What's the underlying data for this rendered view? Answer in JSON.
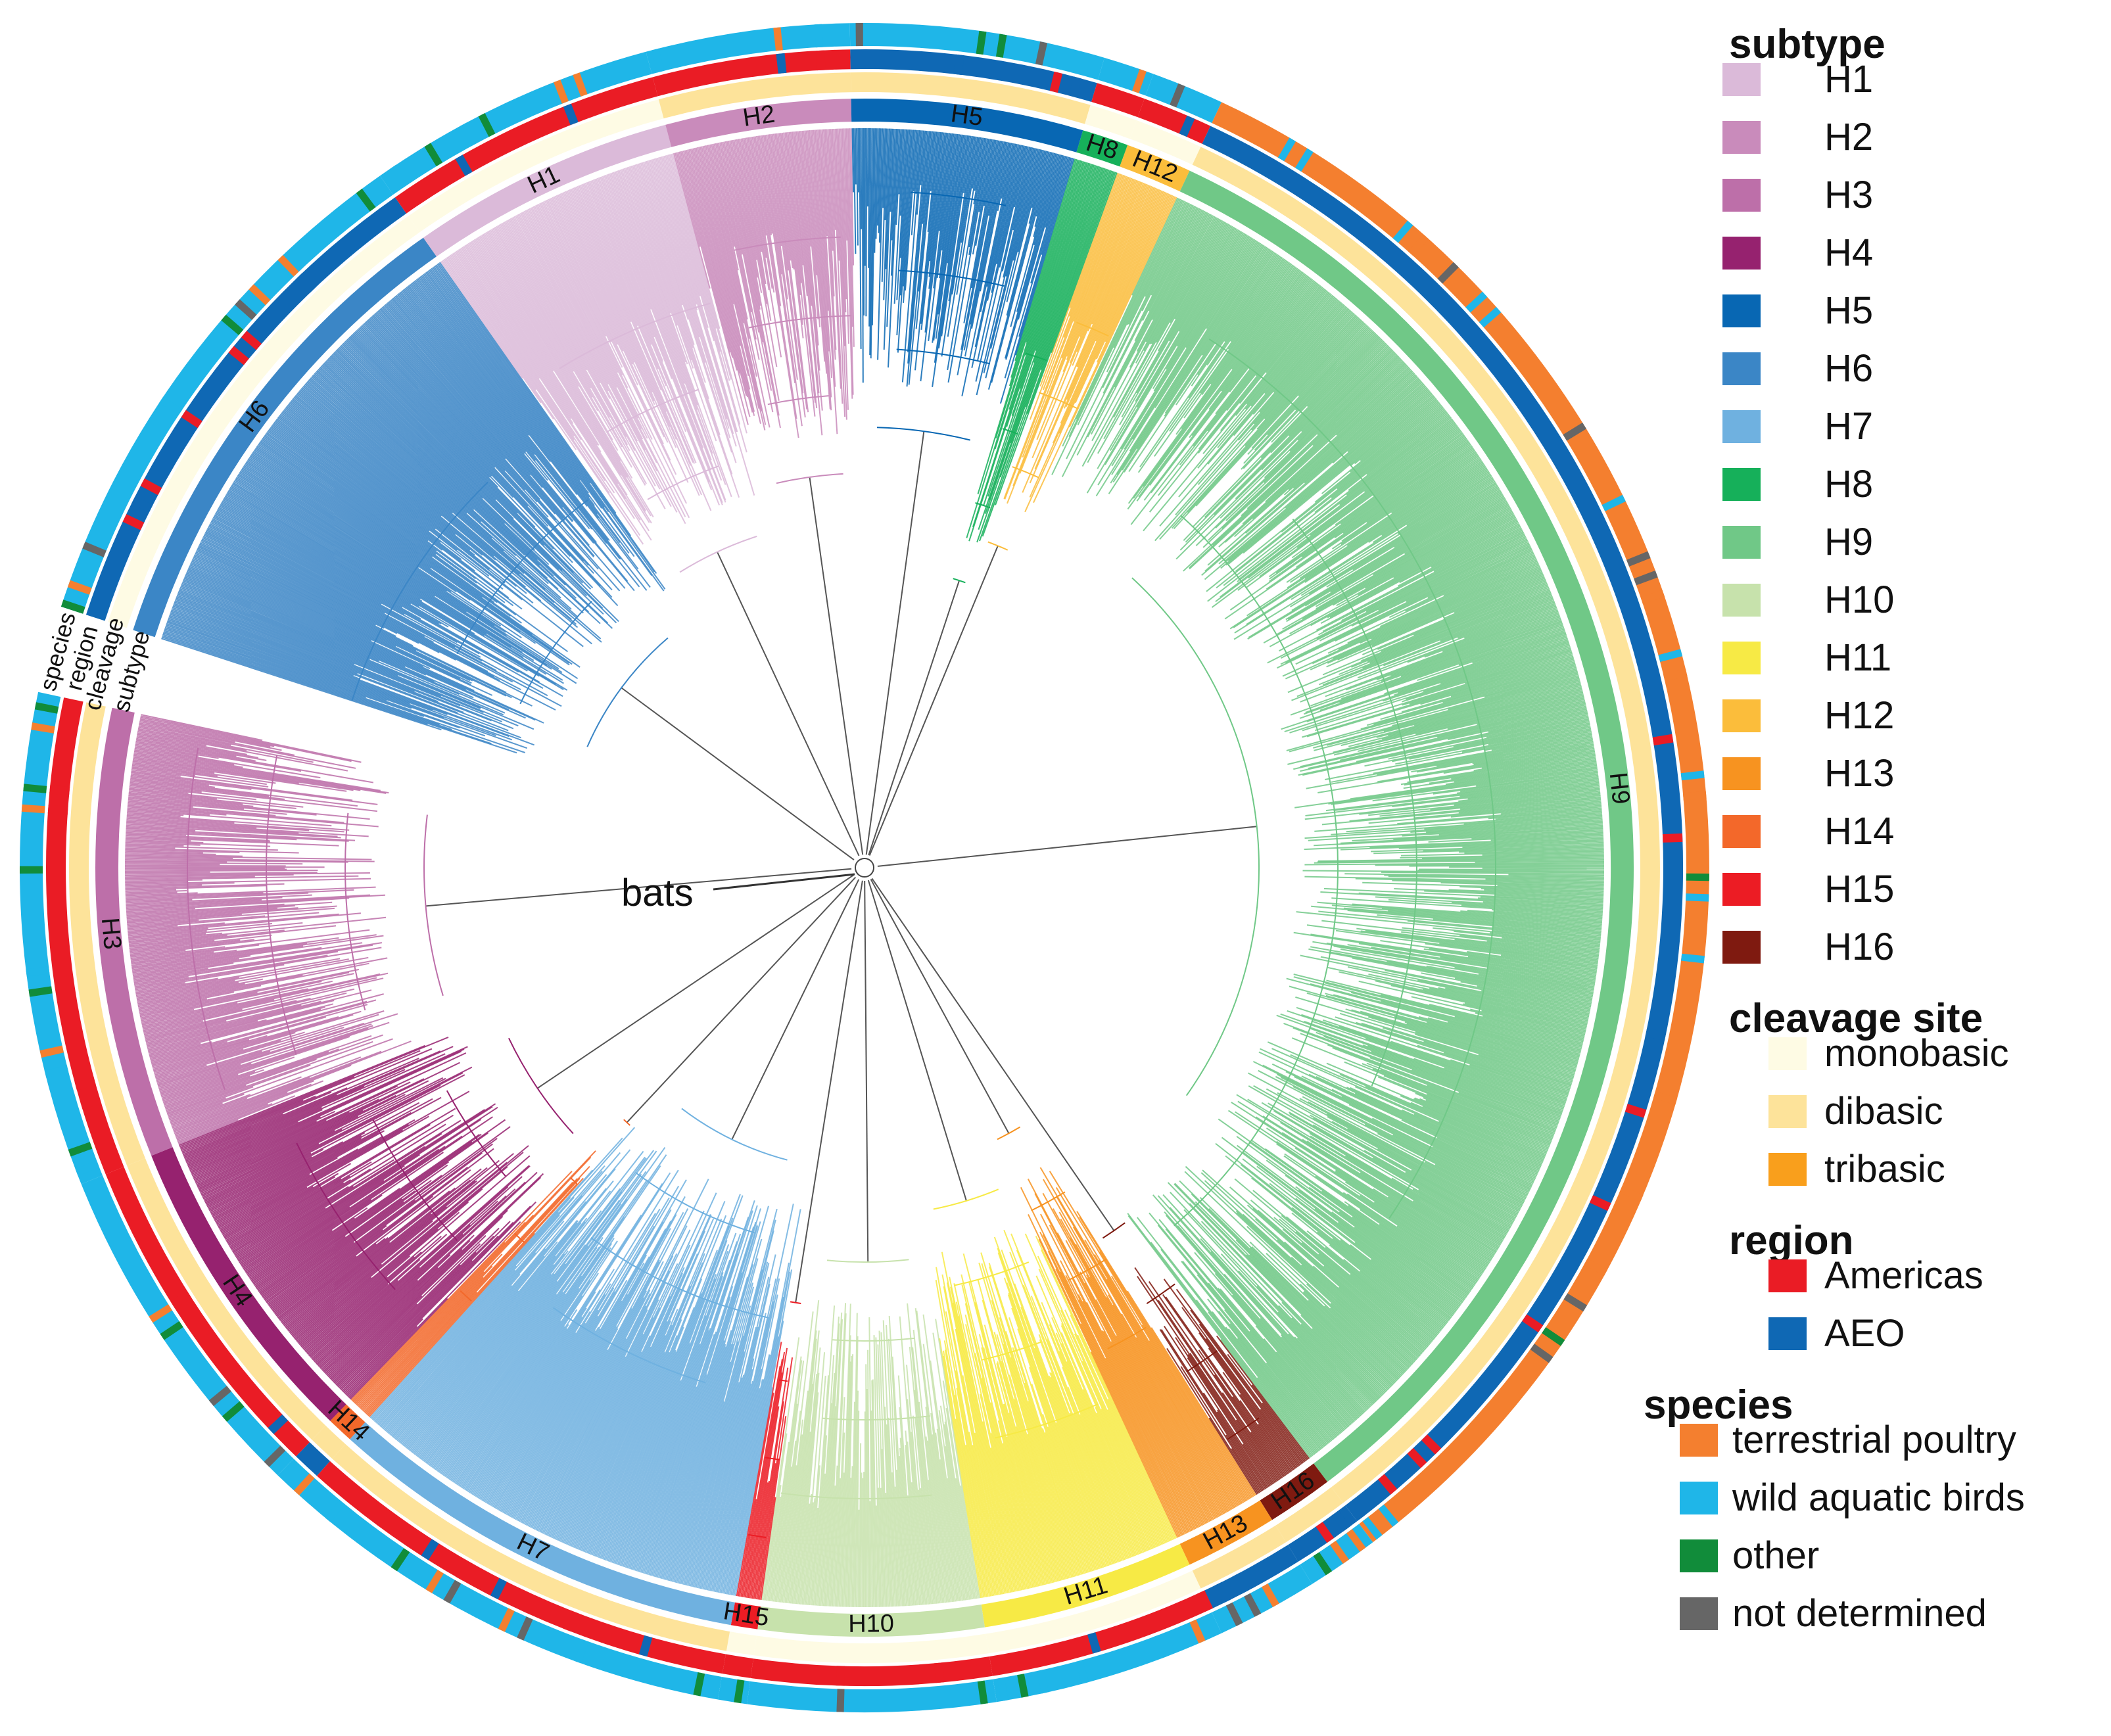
{
  "root_label": "bats",
  "ring_titles": [
    "species",
    "region",
    "cleavage",
    "subtype"
  ],
  "clades": [
    {
      "label": "H6",
      "color": "#3b86c6",
      "a0": -72.0,
      "a1": -35.0,
      "cleavage": "#fefbe4",
      "region": "#0f68b4",
      "species": "#1fb6e8",
      "label_flip": false
    },
    {
      "label": "H1",
      "color": "#dbbad9",
      "a0": -35.0,
      "a1": -15.0,
      "cleavage": "#fefbe4",
      "region": "#ea1c25",
      "species": "#1fb6e8",
      "label_flip": false
    },
    {
      "label": "H2",
      "color": "#c98bbb",
      "a0": -15.0,
      "a1": -1.0,
      "cleavage": "#fde39a",
      "region": "#ea1c25",
      "species": "#1fb6e8",
      "label_flip": false
    },
    {
      "label": "H5",
      "color": "#0867b3",
      "a0": -1.0,
      "a1": 16.5,
      "cleavage": "#fde39a",
      "region": "#0f68b4",
      "species": "#1fb6e8",
      "label_flip": false
    },
    {
      "label": "H8",
      "color": "#16b05a",
      "a0": 16.5,
      "a1": 20.0,
      "cleavage": "#fefbe4",
      "region": "#ea1c25",
      "species": "#1fb6e8",
      "label_flip": false
    },
    {
      "label": "H12",
      "color": "#fbbd3b",
      "a0": 20.0,
      "a1": 25.0,
      "cleavage": "#fefbe4",
      "region": "#ea1c25",
      "species": "#1fb6e8",
      "label_flip": false
    },
    {
      "label": "H9",
      "color": "#70c887",
      "a0": 25.0,
      "a1": 143.0,
      "cleavage": "#fde39a",
      "region": "#0f68b4",
      "species": "#f47f2f",
      "label_flip": false
    },
    {
      "label": "H16",
      "color": "#7f1a10",
      "a0": 143.0,
      "a1": 148.0,
      "cleavage": "#fde39a",
      "region": "#0f68b4",
      "species": "#1fb6e8",
      "label_flip": true
    },
    {
      "label": "H13",
      "color": "#f79320",
      "a0": 148.0,
      "a1": 155.0,
      "cleavage": "#fde39a",
      "region": "#0f68b4",
      "species": "#1fb6e8",
      "label_flip": true
    },
    {
      "label": "H11",
      "color": "#f7ea45",
      "a0": 155.0,
      "a1": 171.0,
      "cleavage": "#fefbe4",
      "region": "#ea1c25",
      "species": "#1fb6e8",
      "label_flip": true
    },
    {
      "label": "H10",
      "color": "#c7e2ac",
      "a0": 171.0,
      "a1": 188.0,
      "cleavage": "#fefbe4",
      "region": "#ea1c25",
      "species": "#1fb6e8",
      "label_flip": true
    },
    {
      "label": "H15",
      "color": "#ec1c24",
      "a0": 188.0,
      "a1": 190.0,
      "cleavage": "#fefbe4",
      "region": "#ea1c25",
      "species": "#1fb6e8",
      "label_flip": true
    },
    {
      "label": "H7",
      "color": "#6fb1e0",
      "a0": 190.0,
      "a1": 222.0,
      "cleavage": "#fde39a",
      "region": "#ea1c25",
      "species": "#1fb6e8",
      "label_flip": true
    },
    {
      "label": "H14",
      "color": "#f3682a",
      "a0": 222.0,
      "a1": 224.0,
      "cleavage": "#fde39a",
      "region": "#0f68b4",
      "species": "#1fb6e8",
      "label_flip": true
    },
    {
      "label": "H4",
      "color": "#96226f",
      "a0": 224.0,
      "a1": 248.0,
      "cleavage": "#fde39a",
      "region": "#ea1c25",
      "species": "#1fb6e8",
      "label_flip": true
    },
    {
      "label": "H3",
      "color": "#bd6fa9",
      "a0": 248.0,
      "a1": 282.0,
      "cleavage": "#fde39a",
      "region": "#ea1c25",
      "species": "#1fb6e8",
      "label_flip": true
    }
  ],
  "legend": [
    {
      "heading": "subtype",
      "items": [
        {
          "label": "H1",
          "color": "#dbbad9"
        },
        {
          "label": "H2",
          "color": "#c98bbb"
        },
        {
          "label": "H3",
          "color": "#bd6fa9"
        },
        {
          "label": "H4",
          "color": "#96226f"
        },
        {
          "label": "H5",
          "color": "#0867b3"
        },
        {
          "label": "H6",
          "color": "#3b86c6"
        },
        {
          "label": "H7",
          "color": "#6fb1e0"
        },
        {
          "label": "H8",
          "color": "#16b05a"
        },
        {
          "label": "H9",
          "color": "#70c887"
        },
        {
          "label": "H10",
          "color": "#c7e2ac"
        },
        {
          "label": "H11",
          "color": "#f7ea45"
        },
        {
          "label": "H12",
          "color": "#fbbd3b"
        },
        {
          "label": "H13",
          "color": "#f79320"
        },
        {
          "label": "H14",
          "color": "#f3682a"
        },
        {
          "label": "H15",
          "color": "#ec1c24"
        },
        {
          "label": "H16",
          "color": "#7f1a10"
        }
      ]
    },
    {
      "heading": "cleavage site",
      "items": [
        {
          "label": "monobasic",
          "color": "#fefbe4"
        },
        {
          "label": "dibasic",
          "color": "#fde39a"
        },
        {
          "label": "tribasic",
          "color": "#f99f1c"
        }
      ]
    },
    {
      "heading": "region",
      "items": [
        {
          "label": "Americas",
          "color": "#ea1c25"
        },
        {
          "label": "AEO",
          "color": "#0f68b4"
        }
      ]
    },
    {
      "heading": "species",
      "items": [
        {
          "label": "terrestrial poultry",
          "color": "#f47f2f"
        },
        {
          "label": "wild aquatic birds",
          "color": "#1fb6e8"
        },
        {
          "label": "other",
          "color": "#118c3a"
        },
        {
          "label": "not determined",
          "color": "#666666"
        }
      ]
    }
  ]
}
